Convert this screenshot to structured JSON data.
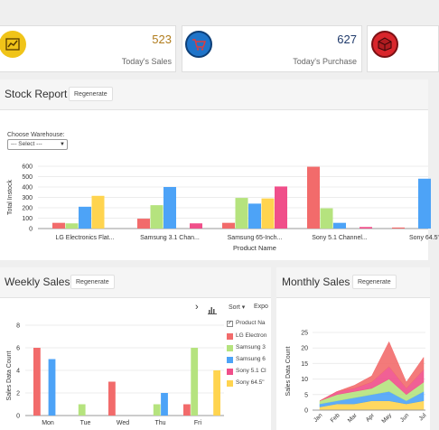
{
  "colors": {
    "red": "#f26b6b",
    "green": "#b5e37e",
    "blue": "#4da3f7",
    "yellow": "#ffd44f",
    "pink": "#f04f8a",
    "icon_yellow": "#f0c419",
    "icon_blue": "#1f74c9",
    "icon_red": "#d9262c"
  },
  "stats": [
    {
      "value": "523",
      "label": "Today's Sales",
      "icon": "trend-chart-icon",
      "value_color": "#b07c1c"
    },
    {
      "value": "627",
      "label": "Today's Purchase",
      "icon": "shopping-cart-icon",
      "value_color": "#1f3a6b"
    },
    {
      "value": "",
      "label": "",
      "icon": "box-icon"
    }
  ],
  "stock_report": {
    "title": "Stock Report",
    "regenerate": "Regenerate",
    "warehouse_label": "Choose Warehouse:",
    "warehouse_value": "--- Select ---"
  },
  "weekly_sales": {
    "title": "Weekly Sales",
    "regenerate": "Regenerate",
    "toolbar": {
      "next": "›",
      "sort": "Sort ▾",
      "export": "Expo"
    },
    "legend_header": "Product Na",
    "legend": [
      "LG Electron",
      "Samsung 3",
      "Samsung 6",
      "Sony 5.1 Cl",
      "Sony 64.5\""
    ]
  },
  "monthly_sales": {
    "title": "Monthly Sales",
    "regenerate": "Regenerate"
  },
  "chart_data": [
    {
      "type": "bar",
      "xlabel": "Product Name",
      "ylabel": "Total Instock",
      "ylim": [
        0,
        600
      ],
      "yticks": [
        0,
        100,
        200,
        300,
        400,
        500,
        600
      ],
      "categories": [
        "LG Electronics Flat...",
        "Samsung 3.1 Chan...",
        "Samsung 65-Inch...",
        "Sony 5.1 Channel...",
        "Sony 64.5\""
      ],
      "series": [
        {
          "color": "#f26b6b",
          "values": [
            55,
            95,
            55,
            595,
            10
          ]
        },
        {
          "color": "#b5e37e",
          "values": [
            50,
            225,
            295,
            195,
            0
          ]
        },
        {
          "color": "#4da3f7",
          "values": [
            210,
            400,
            240,
            55,
            480
          ]
        },
        {
          "color": "#ffd44f",
          "values": [
            315,
            0,
            290,
            0,
            0
          ]
        },
        {
          "color": "#f04f8a",
          "values": [
            0,
            50,
            405,
            15,
            0
          ]
        }
      ]
    },
    {
      "type": "bar",
      "ylabel": "Sales Data Count",
      "ylim": [
        0,
        8
      ],
      "yticks": [
        0,
        2,
        4,
        6,
        8
      ],
      "categories": [
        "Mon",
        "Tue",
        "Wed",
        "Thu",
        "Fri"
      ],
      "series": [
        {
          "name": "LG Electron",
          "color": "#f26b6b",
          "values": [
            6,
            0,
            3,
            0,
            1
          ]
        },
        {
          "name": "Samsung 3",
          "color": "#b5e37e",
          "values": [
            0,
            1,
            0,
            1,
            6
          ]
        },
        {
          "name": "Samsung 6",
          "color": "#4da3f7",
          "values": [
            5,
            0,
            0,
            2,
            0
          ]
        },
        {
          "name": "Sony 5.1 Cl",
          "color": "#f04f8a",
          "values": [
            0,
            0,
            0,
            0,
            0
          ]
        },
        {
          "name": "Sony 64.5\"",
          "color": "#ffd44f",
          "values": [
            0,
            0,
            0,
            0,
            4
          ]
        }
      ]
    },
    {
      "type": "area",
      "ylabel": "Sales Data Count",
      "ylim": [
        0,
        25
      ],
      "yticks": [
        0,
        5,
        10,
        15,
        20,
        25
      ],
      "categories": [
        "Jan",
        "Feb",
        "Mar",
        "Apr",
        "May",
        "Jun",
        "Jul"
      ],
      "series": [
        {
          "color": "#ffd44f",
          "values": [
            1,
            2,
            2,
            3,
            3,
            2,
            3
          ]
        },
        {
          "color": "#4da3f7",
          "values": [
            1,
            1,
            2,
            2,
            3,
            1,
            3
          ]
        },
        {
          "color": "#b5e37e",
          "values": [
            1,
            2,
            2,
            2,
            4,
            2,
            3
          ]
        },
        {
          "color": "#f04f8a",
          "values": [
            0,
            1,
            1,
            2,
            4,
            2,
            4
          ]
        },
        {
          "color": "#f26b6b",
          "values": [
            0,
            0,
            1,
            2,
            8,
            2,
            4
          ]
        }
      ]
    }
  ]
}
